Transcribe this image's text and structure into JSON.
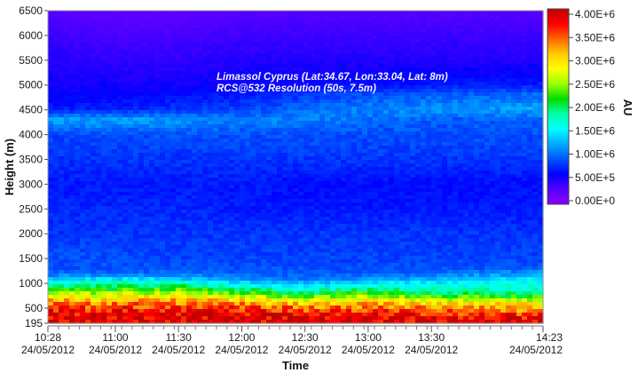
{
  "chart_data": {
    "type": "heatmap",
    "annotation_lines": [
      "Limassol Cyprus (Lat:34.67, Lon:33.04, Lat: 8m)",
      "RCS@532 Resolution (50s, 7.5m)"
    ],
    "xlabel": "Time",
    "ylabel": "Height (m)",
    "colorbar_label": "AU",
    "xlim": [
      "10:28",
      "14:23"
    ],
    "ylim": [
      195,
      6500
    ],
    "x_ticks": [
      {
        "time": "10:28",
        "date": "24/05/2012"
      },
      {
        "time": "11:00",
        "date": "24/05/2012"
      },
      {
        "time": "11:30",
        "date": "24/05/2012"
      },
      {
        "time": "12:00",
        "date": "24/05/2012"
      },
      {
        "time": "12:30",
        "date": "24/05/2012"
      },
      {
        "time": "13:00",
        "date": "24/05/2012"
      },
      {
        "time": "13:30",
        "date": "24/05/2012"
      },
      {
        "time": "14:23",
        "date": "24/05/2012"
      }
    ],
    "y_ticks": [
      195,
      500,
      1000,
      1500,
      2000,
      2500,
      3000,
      3500,
      4000,
      4500,
      5000,
      5500,
      6000,
      6500
    ],
    "colorbar_ticks": [
      "4.00E+6",
      "3.50E+6",
      "3.00E+6",
      "2.50E+6",
      "2.00E+6",
      "1.50E+6",
      "1.00E+6",
      "5.00E+5",
      "0.00E+0"
    ],
    "color_range": [
      0,
      4000000
    ],
    "colorscale": [
      "#c00000",
      "#ff0000",
      "#ff6600",
      "#ffcc00",
      "#ffff00",
      "#99ff00",
      "#00dd00",
      "#00ffaa",
      "#00ffff",
      "#00aaff",
      "#0055ff",
      "#0000ff",
      "#5500ff",
      "#8800ff"
    ],
    "grid": false,
    "profile_heights": [
      195,
      300,
      400,
      500,
      600,
      700,
      800,
      900,
      1000,
      1100,
      1200,
      1300,
      1500,
      2000,
      2500,
      3000,
      3500,
      4000,
      4300,
      4500,
      4800,
      5000,
      5500,
      6000,
      6500
    ],
    "profiles": [
      {
        "time": "10:28",
        "values": [
          3900000,
          3900000,
          3800000,
          3600000,
          3300000,
          2900000,
          2500000,
          2000000,
          1700000,
          1300000,
          1000000,
          900000,
          900000,
          800000,
          750000,
          700000,
          780000,
          850000,
          1200000,
          700000,
          600000,
          550000,
          500000,
          400000,
          300000
        ]
      },
      {
        "time": "11:00",
        "values": [
          3900000,
          3900000,
          3800000,
          3600000,
          3300000,
          3000000,
          2600000,
          2100000,
          1800000,
          1400000,
          1000000,
          900000,
          900000,
          800000,
          750000,
          700000,
          800000,
          900000,
          1200000,
          750000,
          600000,
          550000,
          450000,
          350000,
          250000
        ]
      },
      {
        "time": "11:30",
        "values": [
          3900000,
          3900000,
          3800000,
          3600000,
          3300000,
          3000000,
          2600000,
          2200000,
          1800000,
          1300000,
          1000000,
          900000,
          850000,
          800000,
          750000,
          700000,
          800000,
          900000,
          1150000,
          800000,
          650000,
          550000,
          450000,
          350000,
          250000
        ]
      },
      {
        "time": "12:00",
        "values": [
          3900000,
          3900000,
          3800000,
          3500000,
          3200000,
          2800000,
          2300000,
          1800000,
          1400000,
          1100000,
          950000,
          900000,
          850000,
          800000,
          700000,
          700000,
          800000,
          900000,
          1100000,
          850000,
          700000,
          600000,
          500000,
          400000,
          300000
        ]
      },
      {
        "time": "12:30",
        "values": [
          3900000,
          3900000,
          3700000,
          3400000,
          3000000,
          2500000,
          2000000,
          1600000,
          1300000,
          1000000,
          950000,
          900000,
          850000,
          800000,
          700000,
          650000,
          800000,
          900000,
          1100000,
          1000000,
          800000,
          600000,
          500000,
          400000,
          300000
        ]
      },
      {
        "time": "13:00",
        "values": [
          3900000,
          3900000,
          3700000,
          3400000,
          3100000,
          2700000,
          2300000,
          1800000,
          1500000,
          1100000,
          950000,
          900000,
          850000,
          800000,
          700000,
          650000,
          800000,
          900000,
          1000000,
          1100000,
          900000,
          650000,
          500000,
          400000,
          300000
        ]
      },
      {
        "time": "13:30",
        "values": [
          3900000,
          3800000,
          3600000,
          3300000,
          2900000,
          2400000,
          2000000,
          1700000,
          1500000,
          1200000,
          1000000,
          900000,
          850000,
          800000,
          700000,
          650000,
          800000,
          900000,
          950000,
          1150000,
          950000,
          700000,
          500000,
          400000,
          300000
        ]
      },
      {
        "time": "14:23",
        "values": [
          3900000,
          3800000,
          3500000,
          3200000,
          2800000,
          2300000,
          1900000,
          1700000,
          1600000,
          1500000,
          1200000,
          950000,
          850000,
          800000,
          700000,
          650000,
          800000,
          900000,
          950000,
          1200000,
          1000000,
          700000,
          500000,
          400000,
          300000
        ]
      }
    ]
  }
}
